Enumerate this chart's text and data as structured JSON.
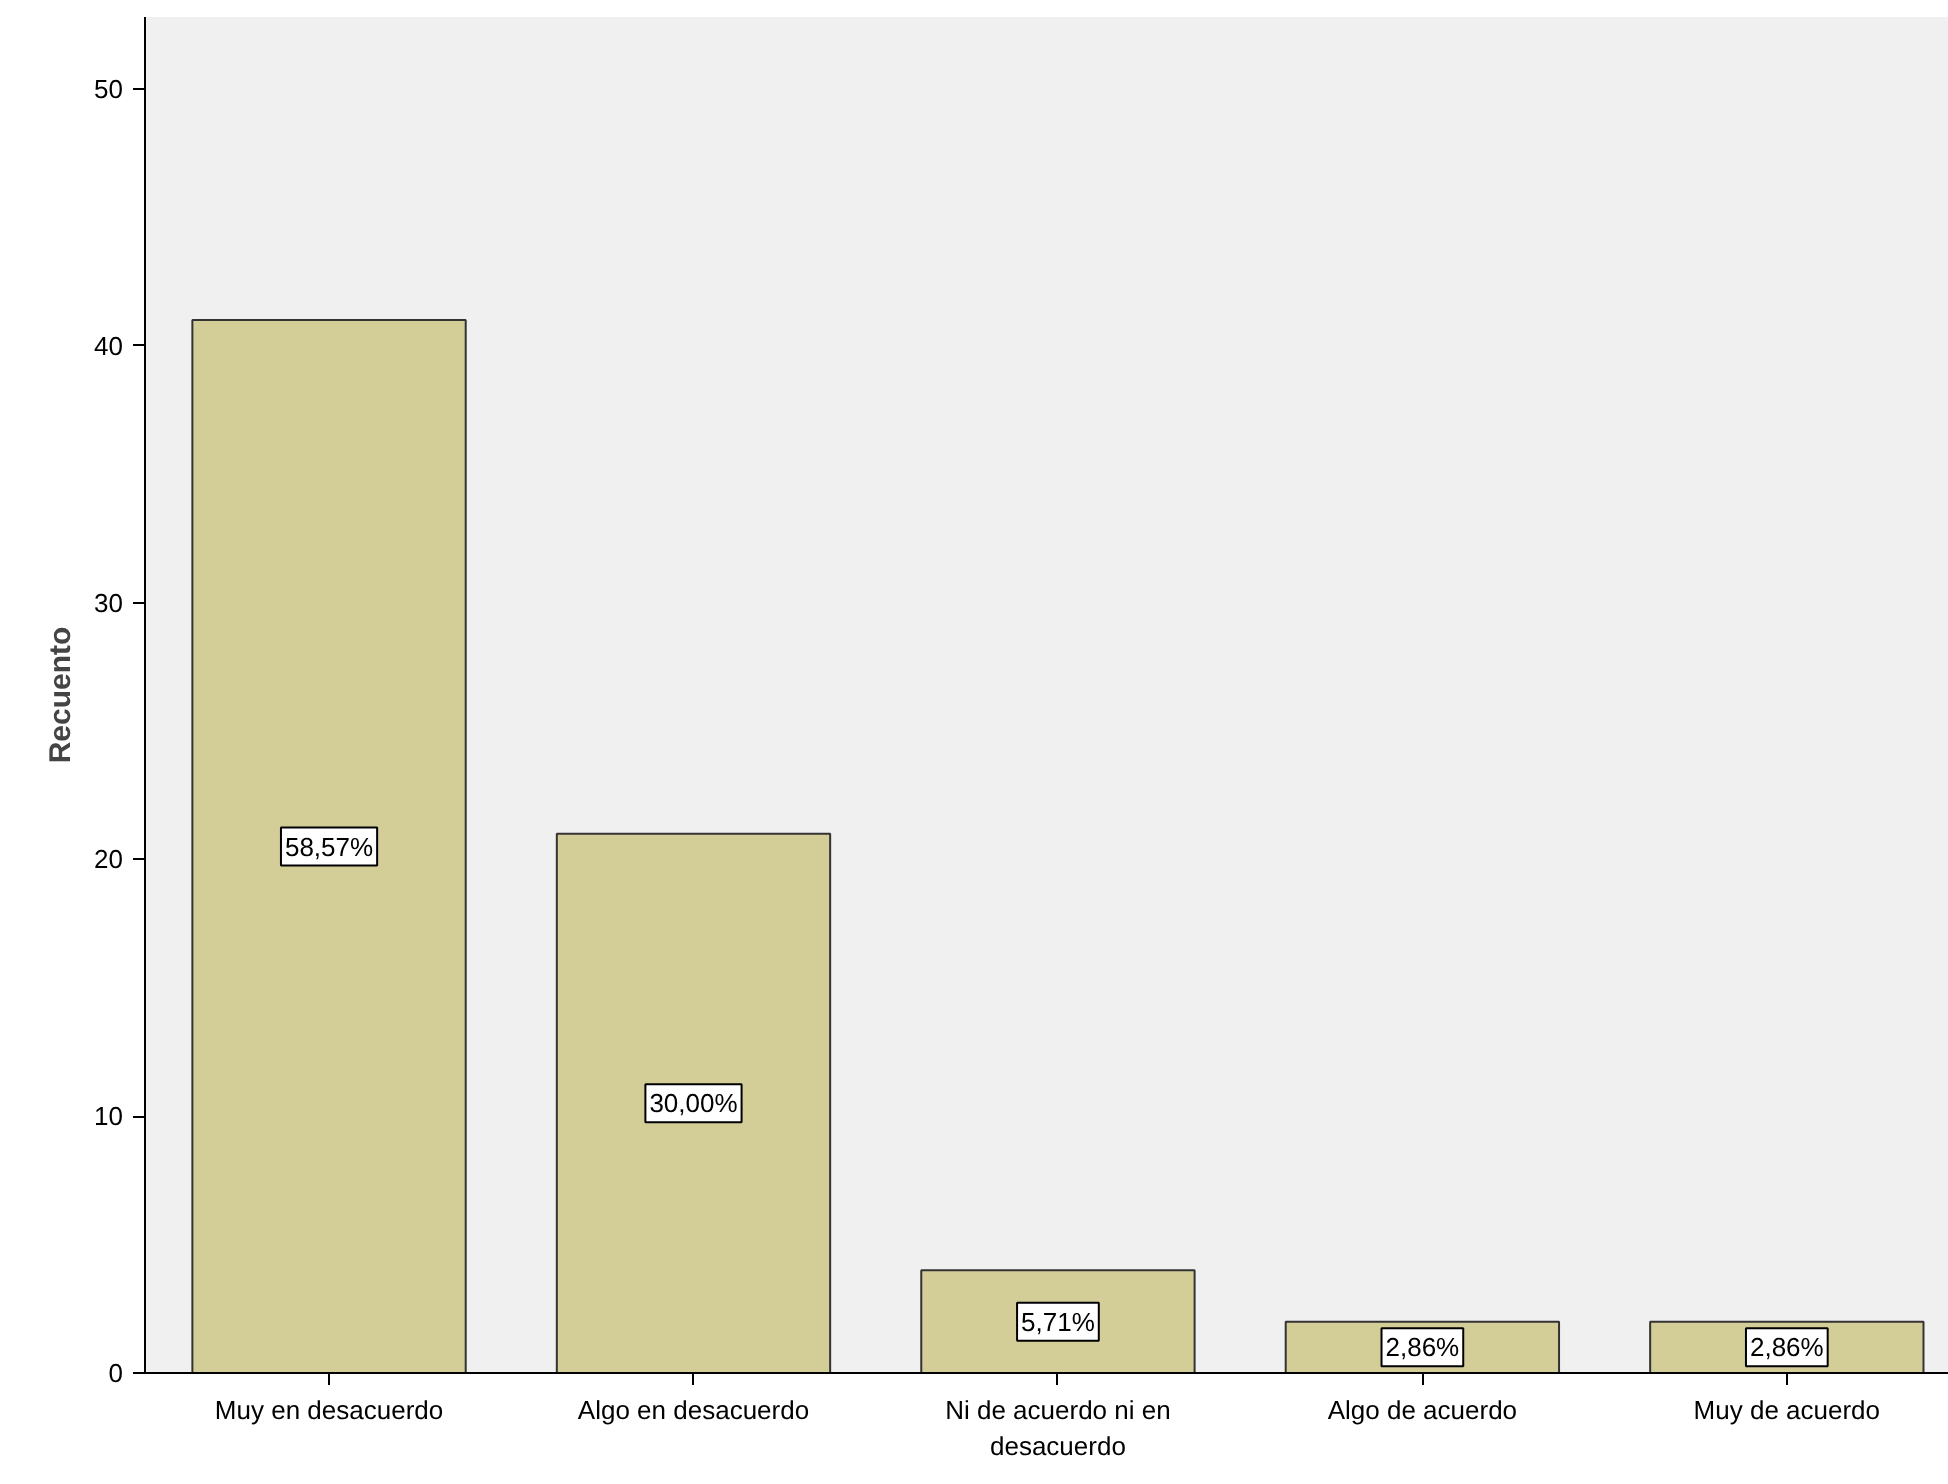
{
  "chart_data": {
    "type": "bar",
    "ylabel": "Recuento",
    "categories": [
      "Muy en desacuerdo",
      "Algo en desacuerdo",
      "Ni de acuerdo ni en desacuerdo",
      "Algo de acuerdo",
      "Muy de acuerdo"
    ],
    "values": [
      41,
      21,
      4,
      2,
      2
    ],
    "annotations": [
      "58,57%",
      "30,00%",
      "5,71%",
      "2,86%",
      "2,86%"
    ],
    "color": "#d3ce97",
    "ylim": [
      0,
      52.8
    ],
    "yticks": [
      0,
      10,
      20,
      30,
      40,
      50
    ],
    "grid": false
  }
}
